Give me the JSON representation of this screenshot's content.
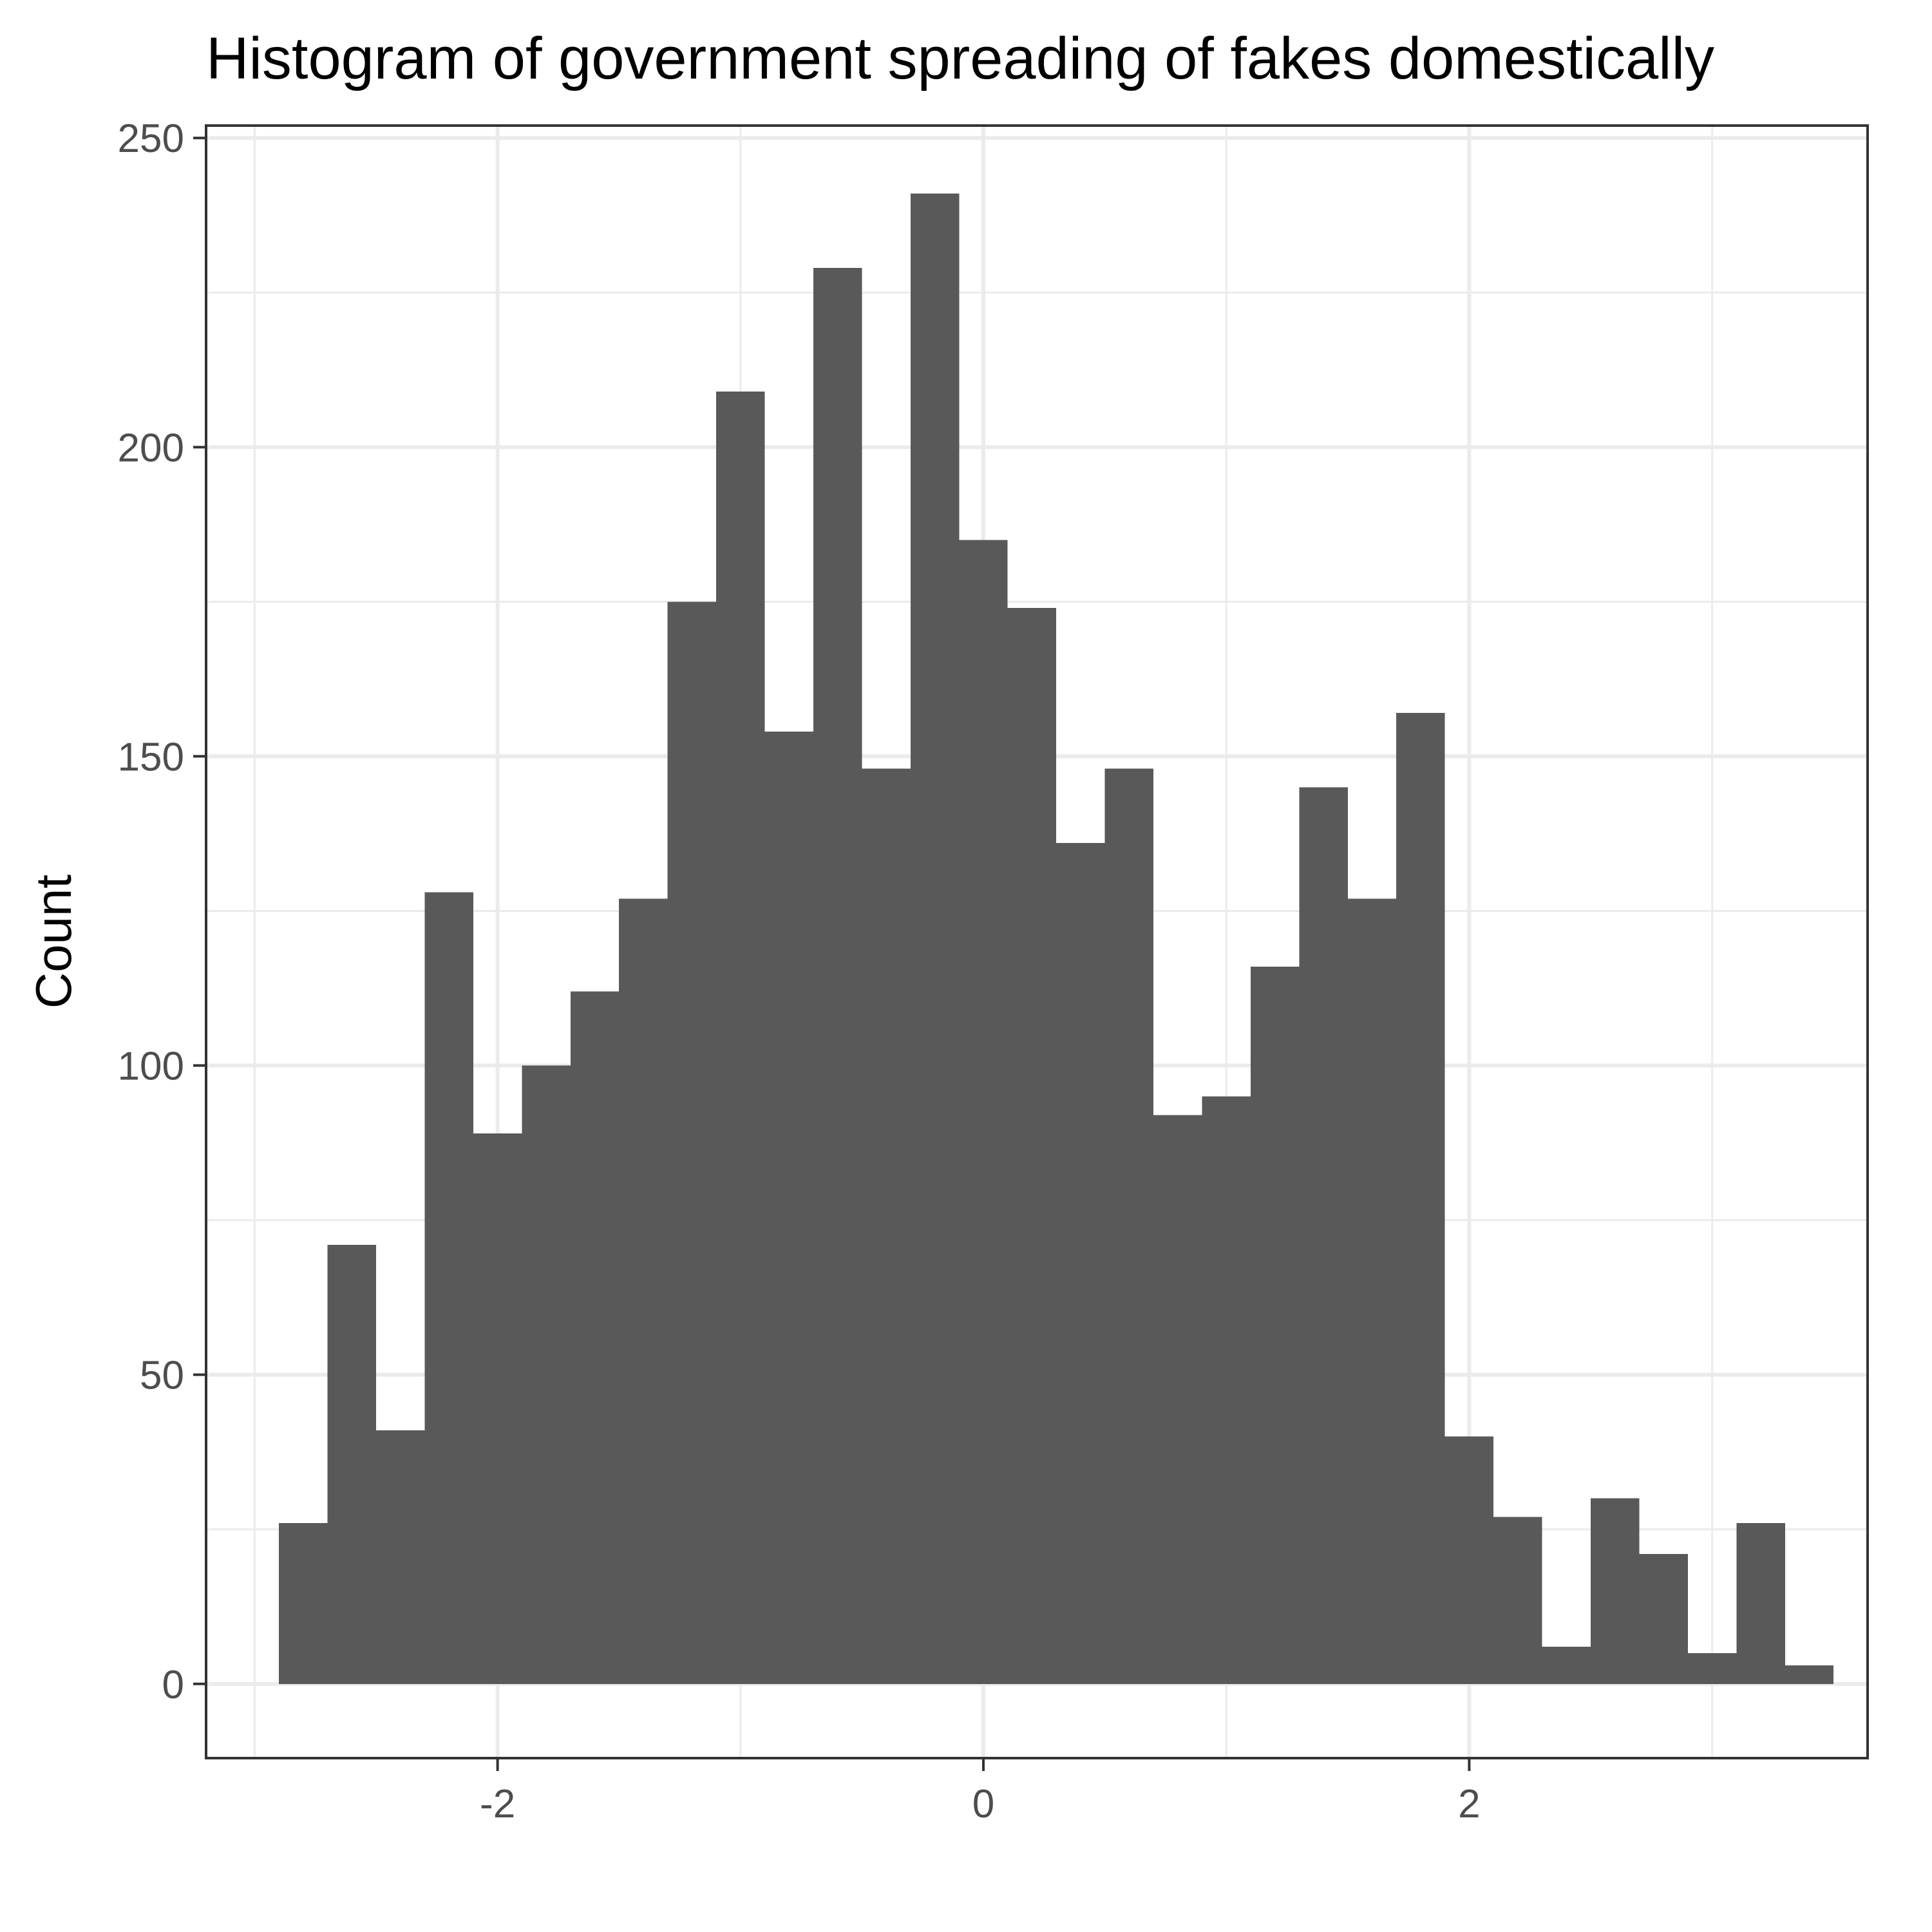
{
  "chart_data": {
    "type": "bar",
    "title": "Histogram of government spreading of fakes domestically",
    "xlabel": "",
    "ylabel": "Count",
    "bin_width": 0.2,
    "bin_start": -2.9,
    "values": [
      26,
      71,
      41,
      128,
      89,
      100,
      112,
      127,
      175,
      209,
      154,
      229,
      148,
      241,
      185,
      174,
      136,
      148,
      92,
      95,
      116,
      145,
      127,
      157,
      40,
      27,
      6,
      30,
      21,
      5,
      26,
      3
    ],
    "xlim": [
      -3.2,
      3.64
    ],
    "ylim": [
      -12,
      252
    ],
    "x_ticks": [
      -2,
      0,
      2
    ],
    "x_tick_labels": [
      "-2",
      "0",
      "2"
    ],
    "y_ticks": [
      0,
      50,
      100,
      150,
      200,
      250
    ],
    "y_tick_labels": [
      "0",
      "50",
      "100",
      "150",
      "200",
      "250"
    ],
    "grid": true,
    "bar_color": "#595959",
    "background": "#ffffff",
    "grid_color": "#ebebeb"
  }
}
